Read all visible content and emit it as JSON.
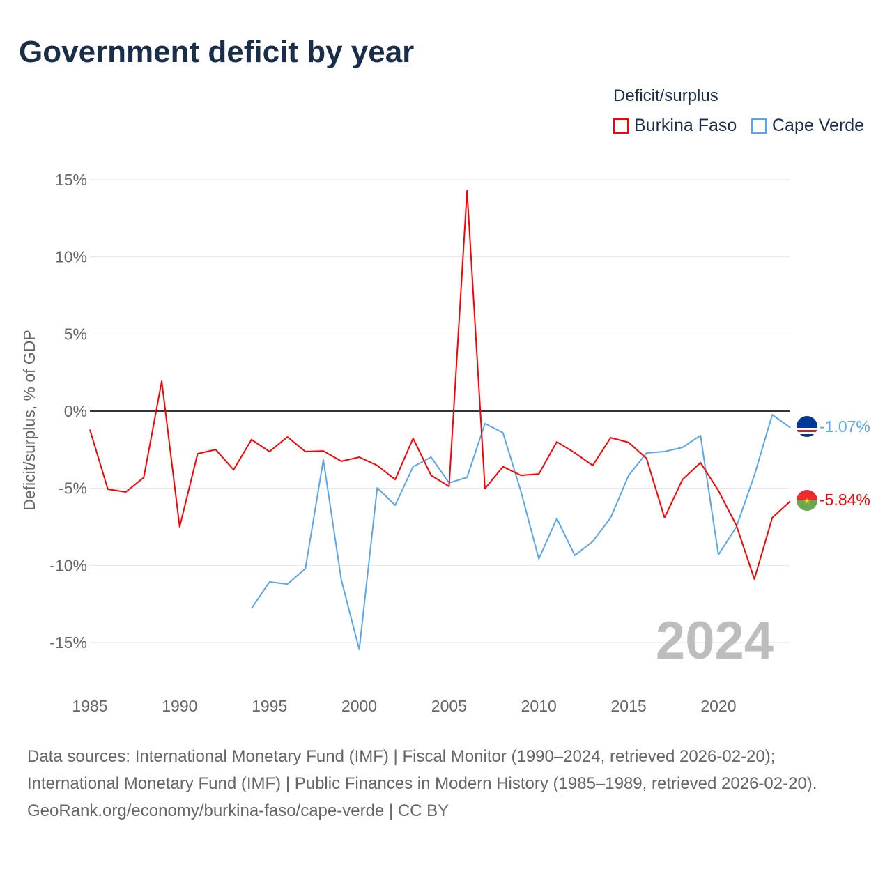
{
  "title": "Government deficit by year",
  "legend": {
    "title": "Deficit/surplus",
    "items": [
      {
        "label": "Burkina Faso",
        "color": "#ff0000"
      },
      {
        "label": "Cape Verde",
        "color": "#5aa6ec"
      }
    ]
  },
  "year_label": "2024",
  "end_labels": {
    "burkina": "-5.84%",
    "capeverde": "-1.07%"
  },
  "footer": {
    "sources": "Data sources: International Monetary Fund (IMF) | Fiscal Monitor (1990–2024, retrieved 2026-02-20); International Monetary Fund (IMF) | Public Finances in Modern History (1985–1989, retrieved 2026-02-20).",
    "credit": "GeoRank.org/economy/burkina-faso/cape-verde | CC BY"
  },
  "chart_data": {
    "type": "line",
    "title": "Government deficit by year",
    "xlabel": "",
    "ylabel": "Deficit/surplus, % of GDP",
    "xlim": [
      1985,
      2024
    ],
    "ylim": [
      -15,
      15
    ],
    "x_ticks": [
      "1985",
      "1990",
      "1995",
      "2000",
      "2005",
      "2010",
      "2015",
      "2020"
    ],
    "y_ticks": [
      "15%",
      "10%",
      "5%",
      "0%",
      "-5%",
      "-10%",
      "-15%"
    ],
    "y_tick_values": [
      15,
      10,
      5,
      0,
      -5,
      -10,
      -15
    ],
    "x_tick_values": [
      1985,
      1990,
      1995,
      2000,
      2005,
      2010,
      2015,
      2020
    ],
    "series": [
      {
        "name": "Burkina Faso",
        "color": "#ff0000",
        "start_year": 1985,
        "values": [
          -1.2,
          -5.06,
          -5.24,
          -4.3,
          1.94,
          -7.5,
          -2.76,
          -2.49,
          -3.8,
          -1.85,
          -2.62,
          -1.67,
          -2.62,
          -2.58,
          -3.25,
          -2.98,
          -3.52,
          -4.43,
          -1.76,
          -4.16,
          -4.88,
          14.32,
          -5.02,
          -3.6,
          -4.16,
          -4.07,
          -1.99,
          -2.7,
          -3.52,
          -1.72,
          -2.03,
          -3.07,
          -6.91,
          -4.43,
          -3.34,
          -5.15,
          -7.41,
          -10.89,
          -6.91,
          -5.84
        ]
      },
      {
        "name": "Cape Verde",
        "color": "#5aa6ec",
        "start_year": 1994,
        "values": [
          -12.79,
          -11.07,
          -11.21,
          -10.21,
          -3.16,
          -10.94,
          -15.45,
          -4.97,
          -6.1,
          -3.6,
          -2.98,
          -4.65,
          -4.29,
          -0.81,
          -1.4,
          -5.2,
          -9.58,
          -6.96,
          -9.35,
          -8.45,
          -6.91,
          -4.16,
          -2.71,
          -2.62,
          -2.35,
          -1.58,
          -9.31,
          -7.5,
          -4.16,
          -0.23,
          -1.07
        ]
      }
    ]
  }
}
